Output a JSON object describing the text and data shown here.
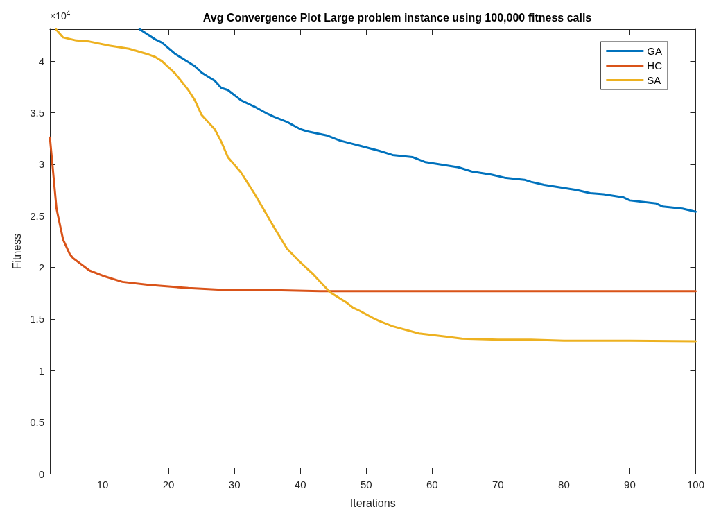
{
  "chart_data": {
    "type": "line",
    "title": "Avg Convergence Plot Large problem instance using 100,000 fitness calls",
    "xlabel": "Iterations",
    "ylabel": "Fitness",
    "annotations": [
      "×10$^{4}$"
    ],
    "xlim": [
      2,
      100
    ],
    "xticks": [
      10,
      20,
      30,
      40,
      50,
      60,
      70,
      80,
      90,
      100
    ],
    "ylim": [
      0,
      4.31
    ],
    "yticks": [
      0,
      0.5,
      1,
      1.5,
      2,
      2.5,
      3,
      3.5,
      4
    ],
    "grid": false,
    "legend": "top right",
    "marker": "none",
    "line_style": "solid",
    "series": [
      {
        "name": "GA",
        "color": "#0072bd",
        "x": [
          15.6,
          18,
          19,
          21,
          22,
          23,
          24,
          25,
          26,
          27,
          28,
          29,
          31,
          33,
          35,
          36,
          38,
          40,
          41,
          44,
          46,
          49,
          52,
          54,
          57,
          59,
          62,
          64,
          66,
          69,
          71,
          74,
          75,
          77,
          79,
          82,
          84,
          86,
          89,
          90,
          94,
          95,
          98,
          100
        ],
        "values": [
          4.31,
          4.21,
          4.18,
          4.07,
          4.03,
          3.99,
          3.95,
          3.89,
          3.85,
          3.81,
          3.74,
          3.72,
          3.62,
          3.56,
          3.49,
          3.46,
          3.41,
          3.34,
          3.32,
          3.28,
          3.23,
          3.18,
          3.13,
          3.09,
          3.07,
          3.02,
          2.99,
          2.97,
          2.93,
          2.9,
          2.87,
          2.85,
          2.83,
          2.8,
          2.78,
          2.75,
          2.72,
          2.71,
          2.68,
          2.65,
          2.62,
          2.59,
          2.57,
          2.54
        ]
      },
      {
        "name": "HC",
        "color": "#d95319",
        "x": [
          2,
          3,
          4,
          5,
          5.5,
          8,
          10,
          13,
          17,
          23,
          29,
          36,
          43,
          50,
          60,
          70,
          80,
          90,
          100
        ],
        "values": [
          3.26,
          2.57,
          2.27,
          2.13,
          2.09,
          1.97,
          1.92,
          1.86,
          1.83,
          1.8,
          1.78,
          1.78,
          1.77,
          1.77,
          1.77,
          1.77,
          1.77,
          1.77,
          1.77
        ]
      },
      {
        "name": "SA",
        "color": "#edb120",
        "x": [
          2.9,
          4,
          6,
          8,
          11,
          14,
          16.7,
          18,
          19,
          21,
          23,
          24,
          25,
          27,
          28,
          29,
          31,
          33,
          36,
          38,
          40,
          42,
          44.5,
          47,
          48,
          49,
          51,
          52,
          54,
          58,
          62,
          64.5,
          70,
          75,
          80,
          90,
          100
        ],
        "values": [
          4.31,
          4.23,
          4.2,
          4.19,
          4.15,
          4.12,
          4.07,
          4.04,
          4,
          3.88,
          3.72,
          3.62,
          3.48,
          3.34,
          3.22,
          3.07,
          2.92,
          2.72,
          2.39,
          2.18,
          2.05,
          1.93,
          1.76,
          1.66,
          1.61,
          1.58,
          1.51,
          1.48,
          1.43,
          1.36,
          1.33,
          1.31,
          1.3,
          1.3,
          1.29,
          1.29,
          1.285
        ]
      }
    ]
  }
}
